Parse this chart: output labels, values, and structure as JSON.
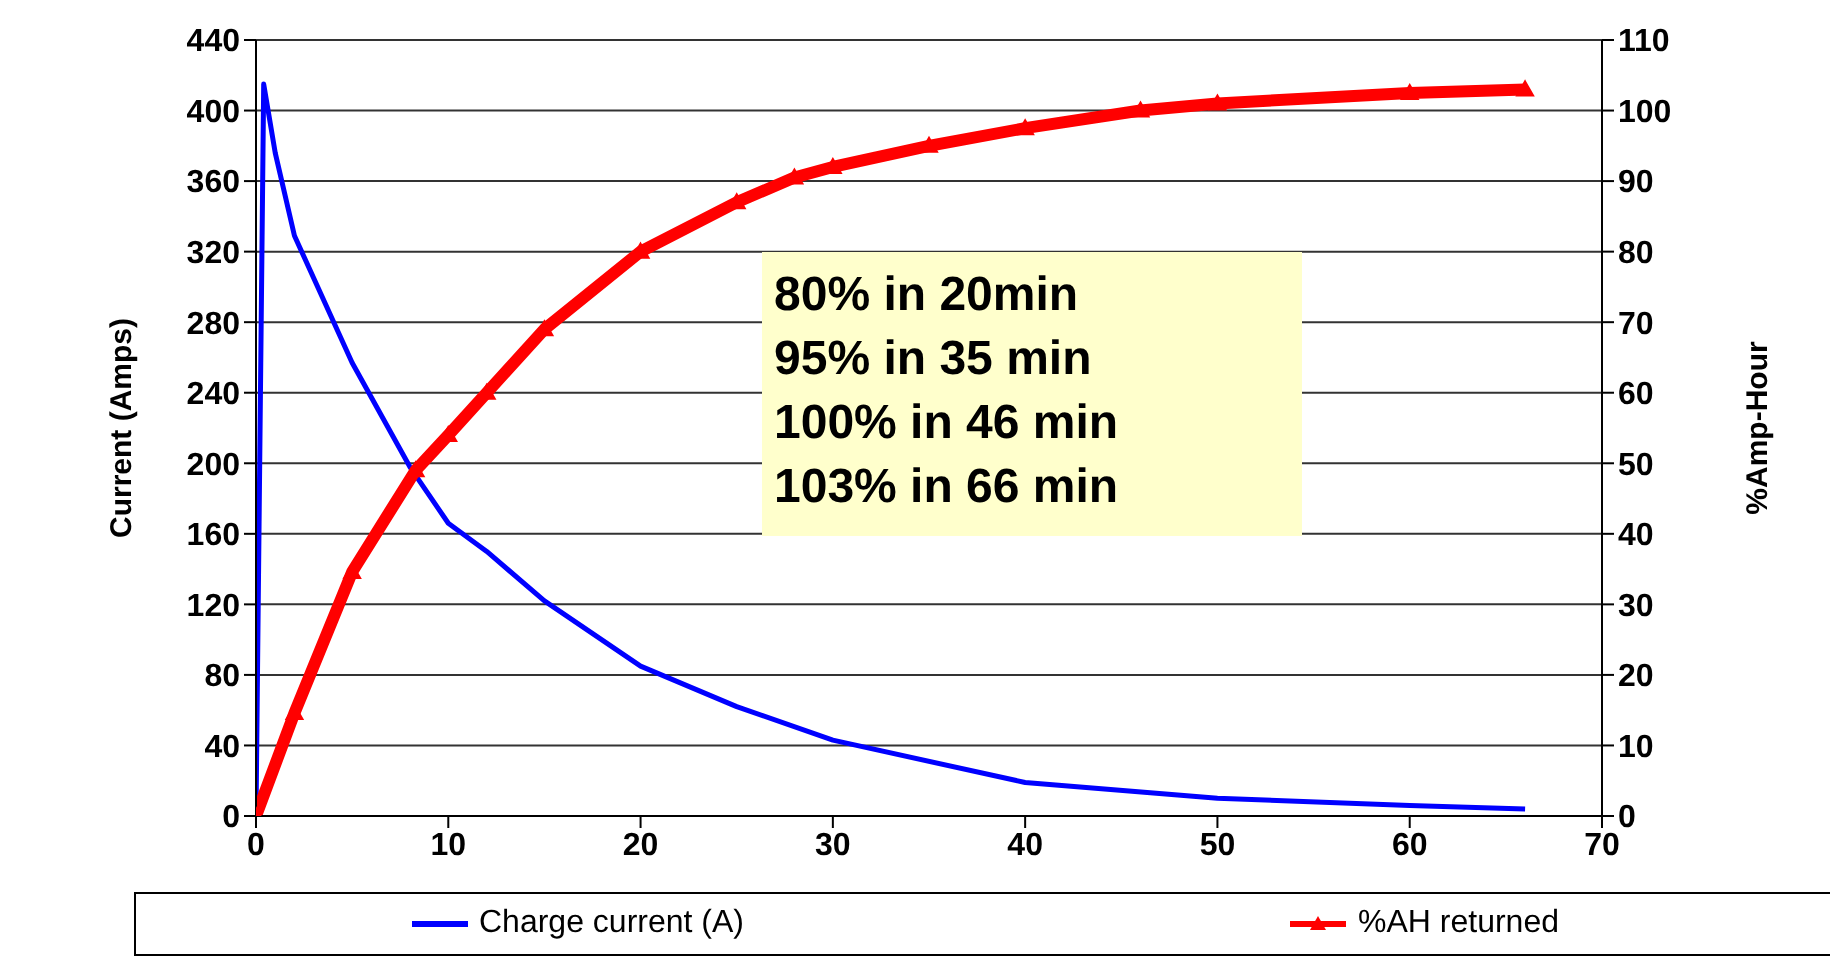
{
  "chart_data": {
    "type": "line",
    "ylabel": "Current (Amps)",
    "y2label": "%Amp-Hour",
    "annotations": [
      "80% in 20min",
      "95% in 35 min",
      "100% in 46 min",
      "103% in 66 min"
    ],
    "series": [
      {
        "name": "Charge current (A)",
        "color": "#0000ff",
        "marker": "none",
        "x": [
          0,
          0.4,
          1,
          2,
          5,
          8,
          10,
          12,
          15,
          20,
          25,
          30,
          40,
          50,
          60,
          66
        ],
        "values": [
          0,
          415,
          376,
          329,
          257,
          198,
          166,
          150,
          122,
          85,
          62,
          43,
          19,
          10,
          6,
          4
        ]
      },
      {
        "name": "%AH returned",
        "color": "#ff0000",
        "marker": "triangle",
        "axis": "y2",
        "x": [
          0,
          2,
          5,
          8.3,
          10,
          12,
          15,
          20,
          25,
          28,
          30,
          35,
          40,
          46,
          50,
          60,
          66
        ],
        "values": [
          0,
          14.6,
          34.6,
          49,
          54,
          60,
          69,
          80,
          87,
          90.5,
          92,
          95,
          97.5,
          100,
          101,
          102.5,
          103
        ]
      }
    ],
    "xlim": [
      0,
      70
    ],
    "xticks": [
      0,
      10,
      20,
      30,
      40,
      50,
      60,
      70
    ],
    "ylim": [
      0,
      440
    ],
    "yticks": [
      0,
      40,
      80,
      120,
      160,
      200,
      240,
      280,
      320,
      360,
      400,
      440
    ],
    "y2lim": [
      0,
      110
    ],
    "y2ticks": [
      0,
      10,
      20,
      30,
      40,
      50,
      60,
      70,
      80,
      90,
      100,
      110
    ],
    "grid": "y",
    "legend": "bottom",
    "line_style": "solid"
  }
}
